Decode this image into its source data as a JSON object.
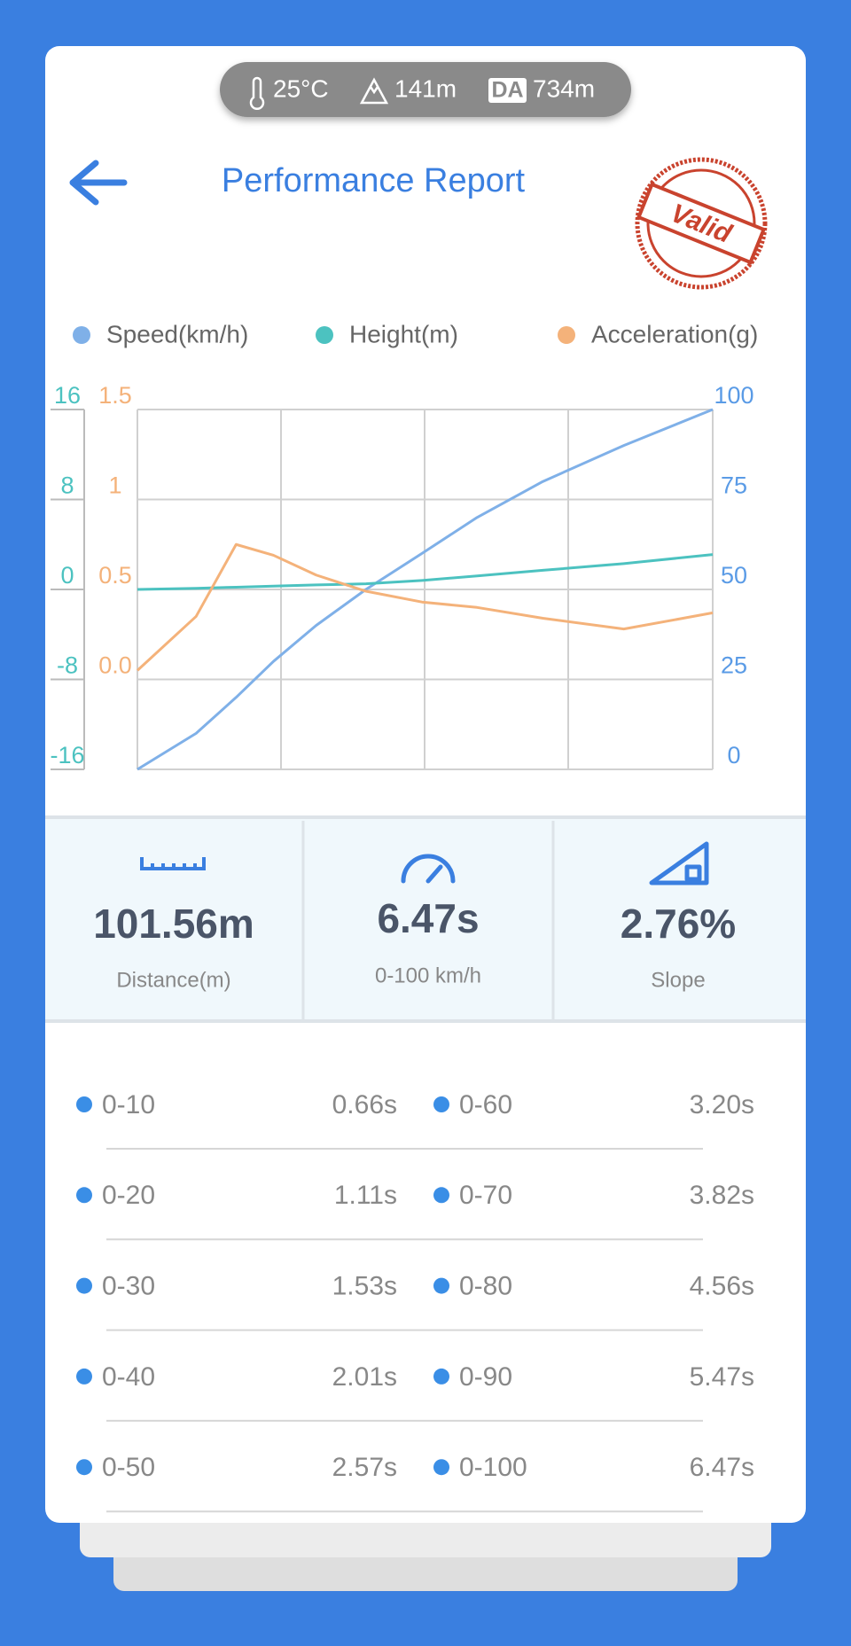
{
  "header": {
    "temperature": "25°C",
    "altitude": "141m",
    "da_badge": "DA",
    "density_altitude": "734m",
    "title": "Performance Report",
    "stamp": "Valid"
  },
  "chart_data": {
    "type": "line",
    "x": [
      0,
      0.66,
      1.11,
      1.53,
      2.01,
      2.57,
      3.2,
      3.82,
      4.56,
      5.47,
      6.47
    ],
    "xlim": [
      0,
      6.47
    ],
    "series": [
      {
        "name": "Speed(km/h)",
        "color": "#7fb0e8",
        "axis": "y2",
        "values": [
          0,
          10,
          20,
          30,
          40,
          50,
          60,
          70,
          80,
          90,
          100
        ]
      },
      {
        "name": "Height(m)",
        "color": "#4cc2c0",
        "axis": "y",
        "values": [
          0,
          0.1,
          0.2,
          0.3,
          0.4,
          0.5,
          0.8,
          1.2,
          1.7,
          2.3,
          3.1
        ]
      },
      {
        "name": "Acceleration(g)",
        "color": "#f4b27a",
        "axis": "y3",
        "values": [
          0.05,
          0.35,
          0.75,
          0.69,
          0.58,
          0.49,
          0.43,
          0.4,
          0.34,
          0.28,
          0.37
        ]
      }
    ],
    "ylim": [
      -16,
      16
    ],
    "yticks": [
      -16,
      -8,
      0,
      8,
      16
    ],
    "y3lim": [
      -0.5,
      1.5
    ],
    "y3ticks": [
      {
        "value": 0,
        "label": "0.0"
      },
      0.5,
      1,
      1.5
    ],
    "y2lim": [
      0,
      100
    ],
    "y2ticks": [
      0,
      25,
      50,
      75,
      100
    ],
    "grid": true
  },
  "stats": [
    {
      "value": "101.56m",
      "label": "Distance(m)"
    },
    {
      "value": "6.47s",
      "label": "0-100 km/h"
    },
    {
      "value": "2.76%",
      "label": "Slope"
    }
  ],
  "table": {
    "rows": [
      [
        "0-10",
        "0.66s",
        "0-60",
        "3.20s"
      ],
      [
        "0-20",
        "1.11s",
        "0-70",
        "3.82s"
      ],
      [
        "0-30",
        "1.53s",
        "0-80",
        "4.56s"
      ],
      [
        "0-40",
        "2.01s",
        "0-90",
        "5.47s"
      ],
      [
        "0-50",
        "2.57s",
        "0-100",
        "6.47s"
      ]
    ]
  }
}
